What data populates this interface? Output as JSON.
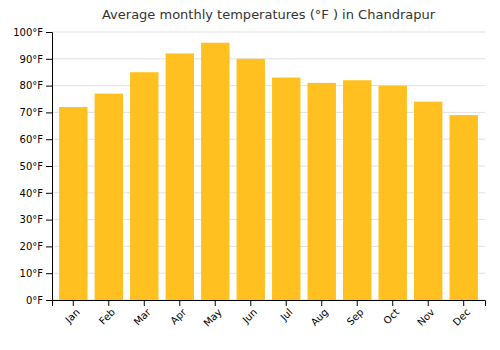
{
  "chart_data": {
    "type": "bar",
    "title": "Average monthly temperatures (°F ) in Chandrapur",
    "categories": [
      "Jan",
      "Feb",
      "Mar",
      "Apr",
      "May",
      "Jun",
      "Jul",
      "Aug",
      "Sep",
      "Oct",
      "Nov",
      "Dec"
    ],
    "values": [
      72,
      77,
      85,
      92,
      96,
      90,
      83,
      81,
      82,
      80,
      74,
      69
    ],
    "color": "#FFC020",
    "ylim": [
      0,
      100
    ],
    "yticks": [
      {
        "value": 0,
        "label": "0°F"
      },
      {
        "value": 10,
        "label": "10°F"
      },
      {
        "value": 20,
        "label": "20°F"
      },
      {
        "value": 30,
        "label": "30°F"
      },
      {
        "value": 40,
        "label": "40°F"
      },
      {
        "value": 50,
        "label": "50°F"
      },
      {
        "value": 60,
        "label": "60°F"
      },
      {
        "value": 70,
        "label": "70°F"
      },
      {
        "value": 80,
        "label": "80°F"
      },
      {
        "value": 90,
        "label": "90°F"
      },
      {
        "value": 100,
        "label": "100°F"
      }
    ],
    "grid": true
  }
}
